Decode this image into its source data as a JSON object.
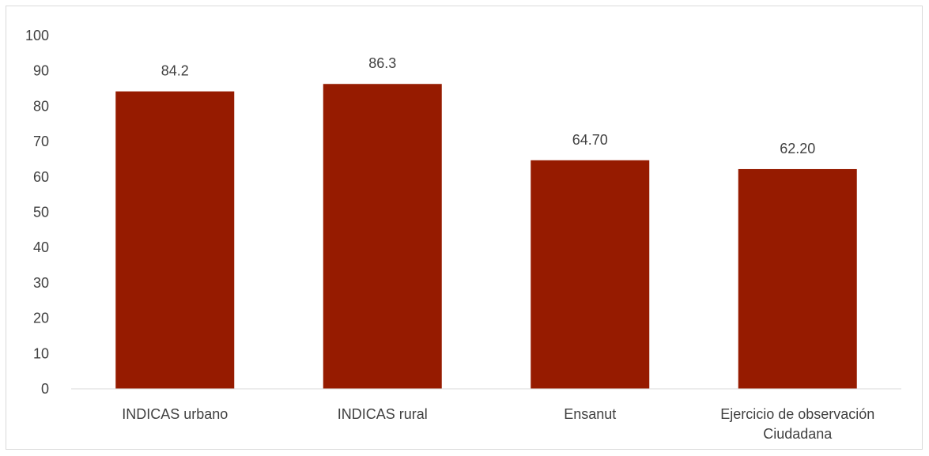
{
  "chart_data": {
    "type": "bar",
    "categories": [
      [
        "INDICAS urbano"
      ],
      [
        "INDICAS rural"
      ],
      [
        "Ensanut"
      ],
      [
        "Ejercicio de observación",
        "Ciudadana"
      ]
    ],
    "values": [
      84.2,
      86.3,
      64.7,
      62.2
    ],
    "data_labels": [
      "84.2",
      "86.3",
      "64.70",
      "62.20"
    ],
    "ylim": [
      0,
      100
    ],
    "yticks": [
      0,
      10,
      20,
      30,
      40,
      50,
      60,
      70,
      80,
      90,
      100
    ],
    "title": "",
    "xlabel": "",
    "ylabel": "",
    "grid": false,
    "legend": "none",
    "colors": {
      "bar": "#961B00",
      "axis": "#d9d9d9",
      "text": "#404040"
    }
  }
}
